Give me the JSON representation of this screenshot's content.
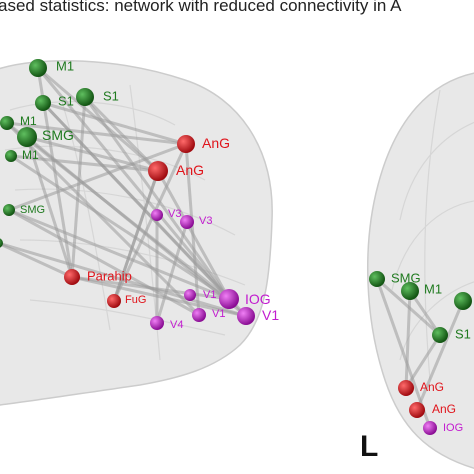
{
  "title": "ased statistics: network with reduced connectivity in A",
  "panel_letter": "L",
  "colors": {
    "green": "#1f7a1f",
    "red": "#e0141b",
    "magenta": "#c21ccf",
    "edge": "#9a9a9a",
    "brain_fill": "#e6e6e6",
    "brain_stroke": "#cfcfcf"
  },
  "left_panel": {
    "nodes": [
      {
        "label": "M1",
        "color": "green"
      },
      {
        "label": "S1",
        "color": "green"
      },
      {
        "label": "S1",
        "color": "green"
      },
      {
        "label": "M1",
        "color": "green"
      },
      {
        "label": "SMG",
        "color": "green"
      },
      {
        "label": "M1",
        "color": "green"
      },
      {
        "label": "SMG",
        "color": "green"
      },
      {
        "label": "",
        "color": "green"
      },
      {
        "label": "AnG",
        "color": "red"
      },
      {
        "label": "AnG",
        "color": "red"
      },
      {
        "label": "V3",
        "color": "magenta"
      },
      {
        "label": "V3",
        "color": "magenta"
      },
      {
        "label": "Parahip",
        "color": "red"
      },
      {
        "label": "FuG",
        "color": "red"
      },
      {
        "label": "V1",
        "color": "magenta"
      },
      {
        "label": "IOG",
        "color": "magenta"
      },
      {
        "label": "V1",
        "color": "magenta"
      },
      {
        "label": "V1",
        "color": "magenta"
      },
      {
        "label": "V4",
        "color": "magenta"
      }
    ]
  },
  "right_panel": {
    "nodes": [
      {
        "label": "SMG",
        "color": "green"
      },
      {
        "label": "M1",
        "color": "green"
      },
      {
        "label": "",
        "color": "green"
      },
      {
        "label": "S1",
        "color": "green"
      },
      {
        "label": "AnG",
        "color": "red"
      },
      {
        "label": "AnG",
        "color": "red"
      },
      {
        "label": "IOG",
        "color": "magenta"
      }
    ]
  }
}
